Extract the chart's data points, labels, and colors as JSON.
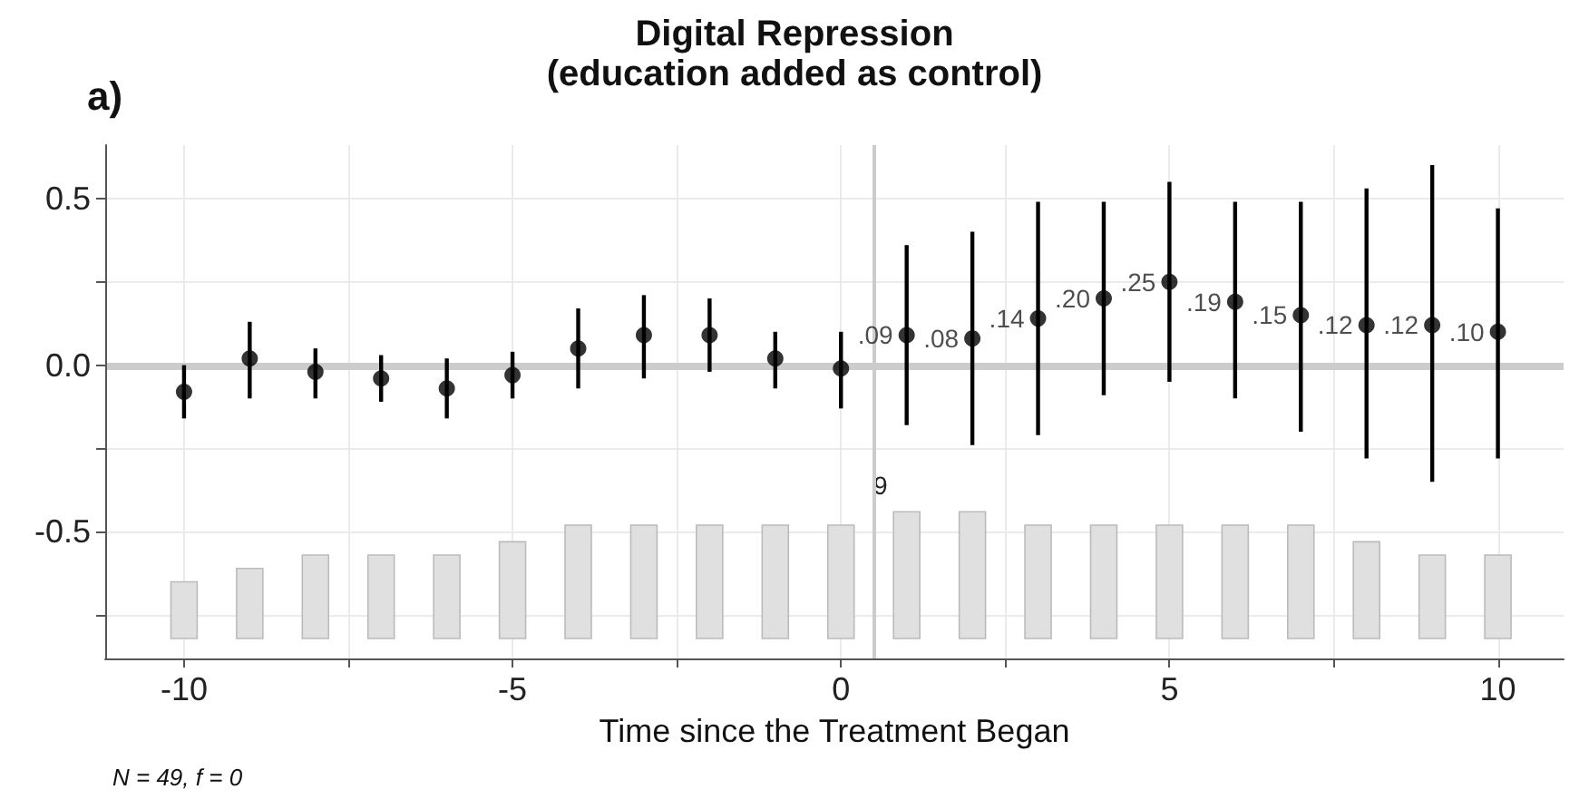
{
  "chart_data": {
    "type": "scatter",
    "title": "Digital Repression",
    "subtitle": "(education added as control)",
    "xlabel": "Time since the Treatment Began",
    "annotations": [
      "a)",
      "N = 49, f = 0",
      {
        "text": "9",
        "x": 0.6,
        "y": -0.36
      }
    ],
    "x": [
      -10,
      -9,
      -8,
      -7,
      -6,
      -5,
      -4,
      -3,
      -2,
      -1,
      0,
      1,
      2,
      3,
      4,
      5,
      6,
      7,
      8,
      9,
      10
    ],
    "series": [
      {
        "type": "bar",
        "color": "#e0e0e0",
        "base": [
          -0.82,
          -0.82,
          -0.82,
          -0.82,
          -0.82,
          -0.82,
          -0.82,
          -0.82,
          -0.82,
          -0.82,
          -0.82,
          -0.82,
          -0.82,
          -0.82,
          -0.82,
          -0.82,
          -0.82,
          -0.82,
          -0.82,
          -0.82,
          -0.82
        ],
        "values": [
          0.17,
          0.21,
          0.25,
          0.25,
          0.25,
          0.29,
          0.34,
          0.34,
          0.34,
          0.34,
          0.34,
          0.38,
          0.38,
          0.34,
          0.34,
          0.34,
          0.34,
          0.34,
          0.29,
          0.25,
          0.25
        ]
      },
      {
        "color": "#000000",
        "values": [
          -0.08,
          0.02,
          -0.02,
          -0.04,
          -0.07,
          -0.03,
          0.05,
          0.09,
          0.09,
          0.02,
          -0.01,
          0.09,
          0.08,
          0.14,
          0.2,
          0.25,
          0.19,
          0.15,
          0.12,
          0.12,
          0.1
        ],
        "errors": [
          [
            -0.16,
            0.0
          ],
          [
            -0.1,
            0.13
          ],
          [
            -0.1,
            0.05
          ],
          [
            -0.11,
            0.03
          ],
          [
            -0.16,
            0.02
          ],
          [
            -0.1,
            0.04
          ],
          [
            -0.07,
            0.17
          ],
          [
            -0.04,
            0.21
          ],
          [
            -0.02,
            0.2
          ],
          [
            -0.07,
            0.1
          ],
          [
            -0.13,
            0.1
          ],
          [
            -0.18,
            0.36
          ],
          [
            -0.24,
            0.4
          ],
          [
            -0.21,
            0.49
          ],
          [
            -0.09,
            0.49
          ],
          [
            -0.05,
            0.55
          ],
          [
            -0.1,
            0.49
          ],
          [
            -0.2,
            0.49
          ],
          [
            -0.28,
            0.53
          ],
          [
            -0.35,
            0.6
          ],
          [
            -0.28,
            0.47
          ]
        ],
        "value_labels": [
          null,
          null,
          null,
          null,
          null,
          null,
          null,
          null,
          null,
          null,
          null,
          ".09",
          ".08",
          ".14",
          ".20",
          ".25",
          ".19",
          ".15",
          ".12",
          ".12",
          ".10"
        ]
      }
    ],
    "marker": "circle",
    "grid": true,
    "ref_lines": [
      {
        "axis": "y",
        "value": 0,
        "color": "#cccccc"
      },
      {
        "axis": "x",
        "value": 0.5,
        "color": "#cccccc"
      }
    ],
    "xlim": [
      -11.2,
      11
    ],
    "xticks": [
      -10,
      {
        "value": -7.5,
        "label": null
      },
      -5,
      {
        "value": -2.5,
        "label": null
      },
      0,
      {
        "value": 2.5,
        "label": null
      },
      5,
      {
        "value": 7.5,
        "label": null
      },
      10
    ],
    "ylim": [
      -0.88,
      0.66
    ],
    "yticks": [
      {
        "value": -0.75,
        "label": null
      },
      {
        "value": -0.5,
        "label": "-0.5"
      },
      {
        "value": -0.25,
        "label": null
      },
      {
        "value": 0,
        "label": "0.0"
      },
      {
        "value": 0.25,
        "label": null
      },
      {
        "value": 0.5,
        "label": "0.5"
      }
    ]
  }
}
